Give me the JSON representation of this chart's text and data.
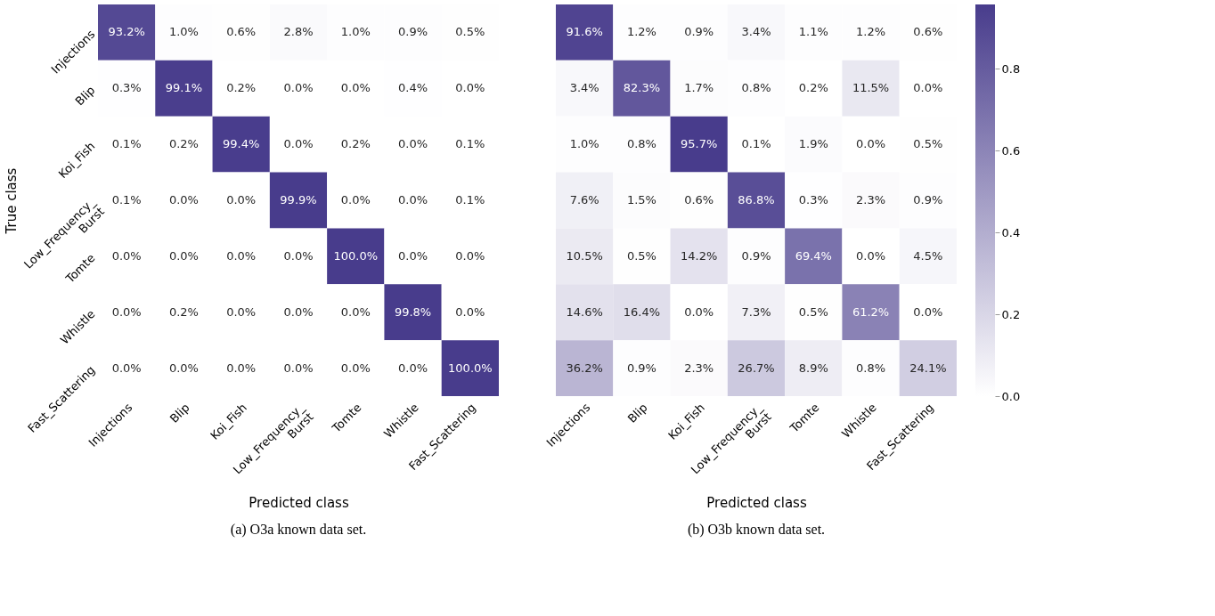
{
  "chart_data": [
    {
      "type": "heatmap",
      "xlabel": "Predicted class",
      "ylabel": "True class",
      "annotations": [
        "(a)  O3a known data set."
      ],
      "categories": [
        "Injections",
        "Blip",
        "Koi_Fish",
        "Low_Frequency_ Burst",
        "Tomte",
        "Whistle",
        "Fast_Scattering"
      ],
      "y_categories": [
        "Injections",
        "Blip",
        "Koi_Fish",
        "Low_Frequency_ Burst",
        "Tomte",
        "Whistle",
        "Fast_Scattering"
      ],
      "cells": [
        [
          0.932,
          0.01,
          0.006,
          0.028,
          0.01,
          0.009,
          0.005
        ],
        [
          0.003,
          0.991,
          0.002,
          0.0,
          0.0,
          0.004,
          0.0
        ],
        [
          0.001,
          0.002,
          0.994,
          0.0,
          0.002,
          0.0,
          0.001
        ],
        [
          0.001,
          0.0,
          0.0,
          0.999,
          0.0,
          0.0,
          0.001
        ],
        [
          0.0,
          0.0,
          0.0,
          0.0,
          1.0,
          0.0,
          0.0
        ],
        [
          0.0,
          0.002,
          0.0,
          0.0,
          0.0,
          0.998,
          0.0
        ],
        [
          0.0,
          0.0,
          0.0,
          0.0,
          0.0,
          0.0,
          1.0
        ]
      ],
      "cell_labels": [
        [
          "93.2%",
          "1.0%",
          "0.6%",
          "2.8%",
          "1.0%",
          "0.9%",
          "0.5%"
        ],
        [
          "0.3%",
          "99.1%",
          "0.2%",
          "0.0%",
          "0.0%",
          "0.4%",
          "0.0%"
        ],
        [
          "0.1%",
          "0.2%",
          "99.4%",
          "0.0%",
          "0.2%",
          "0.0%",
          "0.1%"
        ],
        [
          "0.1%",
          "0.0%",
          "0.0%",
          "99.9%",
          "0.0%",
          "0.0%",
          "0.1%"
        ],
        [
          "0.0%",
          "0.0%",
          "0.0%",
          "0.0%",
          "100.0%",
          "0.0%",
          "0.0%"
        ],
        [
          "0.0%",
          "0.2%",
          "0.0%",
          "0.0%",
          "0.0%",
          "99.8%",
          "0.0%"
        ],
        [
          "0.0%",
          "0.0%",
          "0.0%",
          "0.0%",
          "0.0%",
          "0.0%",
          "100.0%"
        ]
      ]
    },
    {
      "type": "heatmap",
      "xlabel": "Predicted class",
      "annotations": [
        "(b) O3b known data set."
      ],
      "tick_labels": "x",
      "categories": [
        "Injections",
        "Blip",
        "Koi_Fish",
        "Low_Frequency_ Burst",
        "Tomte",
        "Whistle",
        "Fast_Scattering"
      ],
      "y_categories": [
        null,
        null,
        null,
        null,
        null,
        null,
        null
      ],
      "cells": [
        [
          0.916,
          0.012,
          0.009,
          0.034,
          0.011,
          0.012,
          0.006
        ],
        [
          0.034,
          0.823,
          0.017,
          0.008,
          0.002,
          0.115,
          0.0
        ],
        [
          0.01,
          0.008,
          0.957,
          0.001,
          0.019,
          0.0,
          0.005
        ],
        [
          0.076,
          0.015,
          0.006,
          0.868,
          0.003,
          0.023,
          0.009
        ],
        [
          0.105,
          0.005,
          0.142,
          0.009,
          0.694,
          0.0,
          0.045
        ],
        [
          0.146,
          0.164,
          0.0,
          0.073,
          0.005,
          0.612,
          0.0
        ],
        [
          0.362,
          0.009,
          0.023,
          0.267,
          0.089,
          0.008,
          0.241
        ]
      ],
      "cell_labels": [
        [
          "91.6%",
          "1.2%",
          "0.9%",
          "3.4%",
          "1.1%",
          "1.2%",
          "0.6%"
        ],
        [
          "3.4%",
          "82.3%",
          "1.7%",
          "0.8%",
          "0.2%",
          "11.5%",
          "0.0%"
        ],
        [
          "1.0%",
          "0.8%",
          "95.7%",
          "0.1%",
          "1.9%",
          "0.0%",
          "0.5%"
        ],
        [
          "7.6%",
          "1.5%",
          "0.6%",
          "86.8%",
          "0.3%",
          "2.3%",
          "0.9%"
        ],
        [
          "10.5%",
          "0.5%",
          "14.2%",
          "0.9%",
          "69.4%",
          "0.0%",
          "4.5%"
        ],
        [
          "14.6%",
          "16.4%",
          "0.0%",
          "7.3%",
          "0.5%",
          "61.2%",
          "0.0%"
        ],
        [
          "36.2%",
          "0.9%",
          "2.3%",
          "26.7%",
          "8.9%",
          "0.8%",
          "24.1%"
        ]
      ],
      "clim": [
        0,
        0.957
      ],
      "cticks": [
        {
          "value": 0,
          "label": "0.0"
        },
        {
          "value": 0.2,
          "label": "0.2"
        },
        {
          "value": 0.4,
          "label": "0.4"
        },
        {
          "value": 0.6,
          "label": "0.6"
        },
        {
          "value": 0.8,
          "label": "0.8"
        }
      ]
    }
  ]
}
